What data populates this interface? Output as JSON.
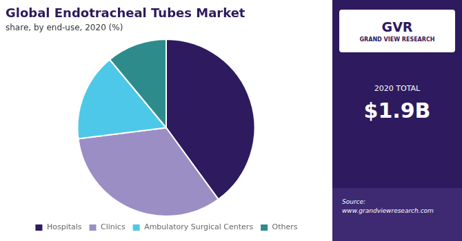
{
  "chart_data": {
    "type": "pie",
    "title": "Global Endotracheal Tubes Market",
    "subtitle": "share, by end-use, 2020 (%)",
    "categories": [
      "Hospitals",
      "Clinics",
      "Ambulatory Surgical Centers",
      "Others"
    ],
    "values": [
      40,
      33,
      16,
      11
    ],
    "colors": [
      "#2e1a5e",
      "#9b8ec4",
      "#4dc8e8",
      "#2e8b8b"
    ],
    "legend": "bottom",
    "annotations": [
      "GVR",
      "GRAND VIEW RESEARCH",
      "2020 TOTAL",
      "$1.9B",
      "Source:\nwww.grandviewresearch.com"
    ]
  }
}
